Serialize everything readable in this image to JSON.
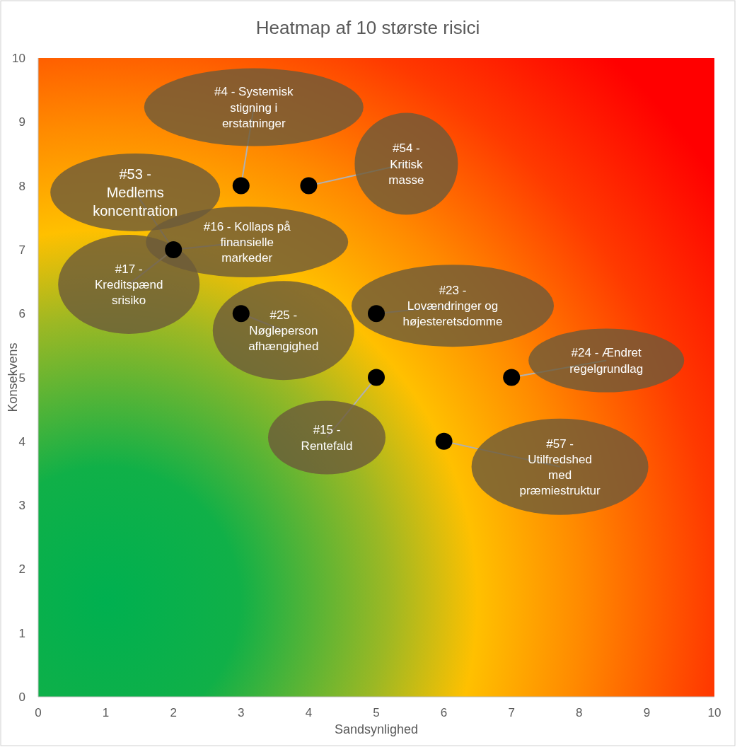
{
  "chart_data": {
    "type": "scatter",
    "title": "Heatmap af 10 største risici",
    "xlabel": "Sandsynlighed",
    "ylabel": "Konsekvens",
    "xlim": [
      0,
      10
    ],
    "ylim": [
      0,
      10
    ],
    "xticks": [
      0,
      1,
      2,
      3,
      4,
      5,
      6,
      7,
      8,
      9,
      10
    ],
    "yticks": [
      0,
      1,
      2,
      3,
      4,
      5,
      6,
      7,
      8,
      9,
      10
    ],
    "marker": "circle",
    "series": [
      {
        "color": "#000000",
        "x": [
          3,
          4,
          2,
          3,
          5,
          7,
          5,
          6
        ],
        "values": [
          8,
          8,
          7,
          6,
          6,
          5,
          5,
          4
        ]
      }
    ],
    "annotations": [
      {
        "text": "#4 - Systemisk\nstigning i\nerstatninger",
        "x": 3,
        "y": 8
      },
      {
        "text": "#54 -\nKritisk\nmasse",
        "x": 4,
        "y": 8
      },
      {
        "text": "#53 -\nMedlems\nkoncentration",
        "x": 2,
        "y": 7
      },
      {
        "text": "#16 - Kollaps på\nfinansielle\nmarkeder",
        "x": 2,
        "y": 7
      },
      {
        "text": "#17 -\nKreditspænd\nsrisiko",
        "x": 2,
        "y": 7
      },
      {
        "text": "#25 -\nNøgleperson\nafhængighed",
        "x": 3,
        "y": 6
      },
      {
        "text": "#23 -\nLovændringer og\nhøjesteretsdomme",
        "x": 5,
        "y": 6
      },
      {
        "text": "#24 - Ændret\nregelgrundlag",
        "x": 7,
        "y": 5
      },
      {
        "text": "#15 -\nRentefald",
        "x": 5,
        "y": 5
      },
      {
        "text": "#57 -\nUtilfredshed\nmed\npræmiestruktur",
        "x": 6,
        "y": 4
      }
    ]
  }
}
